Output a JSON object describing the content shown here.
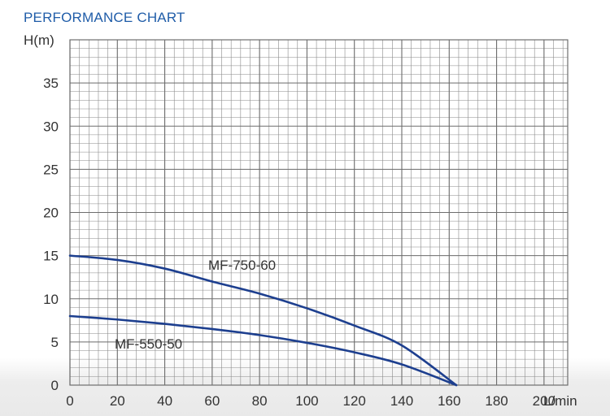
{
  "title": "PERFORMANCE CHART",
  "chart_data": {
    "type": "line",
    "title": "PERFORMANCE CHART",
    "xlabel": "L/min",
    "ylabel": "H(m)",
    "xlim": [
      0,
      210
    ],
    "ylim": [
      0,
      40
    ],
    "x_ticks": [
      "0",
      "20",
      "40",
      "60",
      "80",
      "100",
      "120",
      "140",
      "160",
      "180",
      "200"
    ],
    "x_tick_values": [
      0,
      20,
      40,
      60,
      80,
      100,
      120,
      140,
      160,
      180,
      200
    ],
    "y_ticks": [
      "0",
      "5",
      "10",
      "15",
      "20",
      "25",
      "30",
      "35"
    ],
    "y_tick_values": [
      0,
      5,
      10,
      15,
      20,
      25,
      30,
      35
    ],
    "grid": true,
    "colors": {
      "series": "#1d3f8f",
      "grid": "#8a8a8a",
      "title": "#1f5ca8"
    },
    "series": [
      {
        "name": "MF-750-60",
        "x": [
          0,
          20,
          40,
          60,
          80,
          100,
          120,
          140,
          163
        ],
        "y": [
          15.0,
          14.5,
          13.5,
          12.0,
          10.6,
          8.9,
          6.9,
          4.6,
          0
        ]
      },
      {
        "name": "MF-550-50",
        "x": [
          0,
          20,
          40,
          60,
          80,
          100,
          120,
          140,
          163
        ],
        "y": [
          8.0,
          7.6,
          7.1,
          6.5,
          5.8,
          4.9,
          3.8,
          2.4,
          0
        ]
      }
    ]
  }
}
